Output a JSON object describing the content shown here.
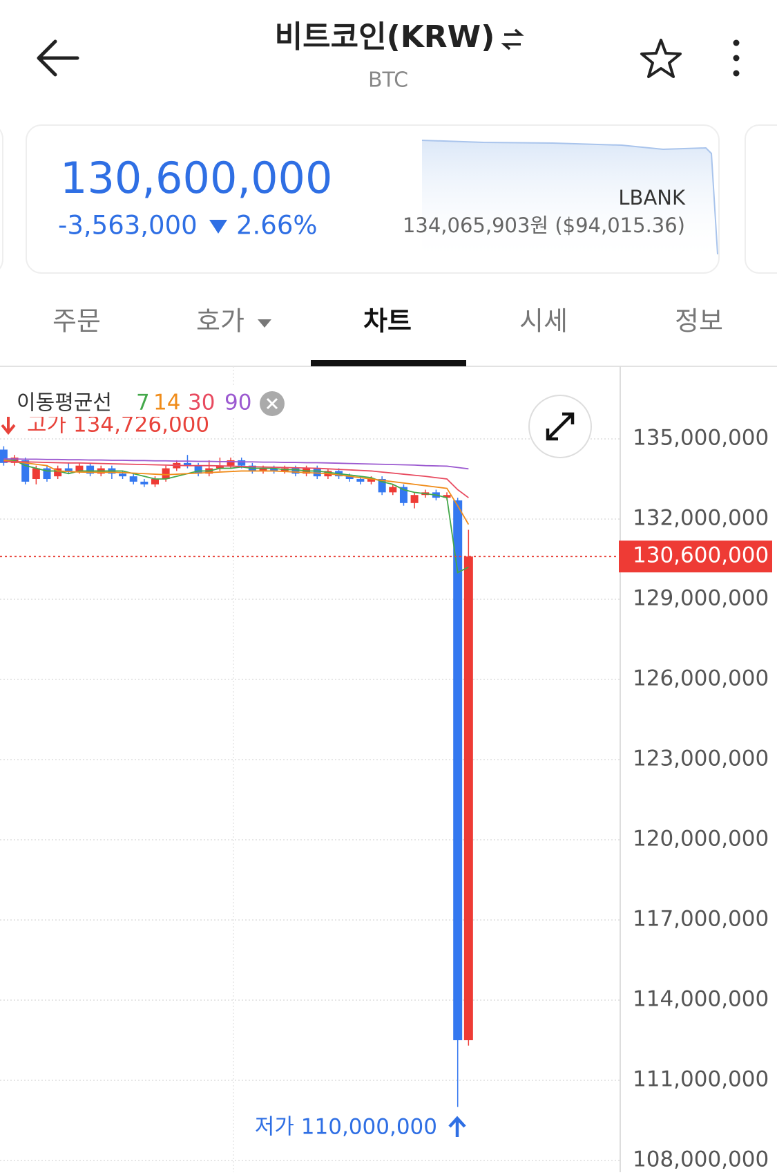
{
  "header": {
    "title": "비트코인(KRW)",
    "subtitle": "BTC"
  },
  "card": {
    "price": "130,600,000",
    "change": "-3,563,000",
    "change_pct": "2.66%",
    "exchange": "LBANK",
    "exchange_price": "134,065,903원 ($94,015.36)"
  },
  "tabs": [
    "주문",
    "호가",
    "차트",
    "시세",
    "정보"
  ],
  "chart_data": {
    "type": "candlestick",
    "ma_label": "이동평균선",
    "up_color": "#ee3b35",
    "down_color": "#3478f0",
    "open": [
      134600000.0,
      134100000.0,
      134200000.0,
      133500000.0,
      133900000.0,
      133600000.0,
      133900000.0,
      133800000.0,
      134000000.0,
      133700000.0,
      133900000.0,
      133700000.0,
      133600000.0,
      133400000.0,
      133300000.0,
      133500000.0,
      133900000.0,
      134100000.0,
      134000000.0,
      133700000.0,
      133900000.0,
      134000000.0,
      134200000.0,
      134000000.0,
      133800000.0,
      133900000.0,
      133800000.0,
      133900000.0,
      133700000.0,
      133900000.0,
      133600000.0,
      133800000.0,
      133600000.0,
      133500000.0,
      133400000.0,
      133500000.0,
      133000000.0,
      133200000.0,
      132600000.0,
      132900000.0,
      133000000.0,
      132800000.0,
      132700000.0,
      112500000.0
    ],
    "high": [
      134726000.0,
      134400000.0,
      134300000.0,
      134000000.0,
      134000000.0,
      134000000.0,
      134100000.0,
      134100000.0,
      134100000.0,
      134000000.0,
      134000000.0,
      133800000.0,
      133700000.0,
      133500000.0,
      133600000.0,
      134000000.0,
      134200000.0,
      134400000.0,
      134100000.0,
      134200000.0,
      134300000.0,
      134300000.0,
      134300000.0,
      134100000.0,
      134000000.0,
      134000000.0,
      134000000.0,
      134000000.0,
      134000000.0,
      134000000.0,
      133900000.0,
      133900000.0,
      133700000.0,
      133600000.0,
      133600000.0,
      133600000.0,
      133300000.0,
      133300000.0,
      133000000.0,
      133100000.0,
      133100000.0,
      133000000.0,
      132800000.0,
      131600000.0
    ],
    "low": [
      134000000.0,
      134000000.0,
      133300000.0,
      133300000.0,
      133400000.0,
      133500000.0,
      133700000.0,
      133700000.0,
      133600000.0,
      133600000.0,
      133500000.0,
      133500000.0,
      133300000.0,
      133200000.0,
      133200000.0,
      133400000.0,
      133800000.0,
      133900000.0,
      133600000.0,
      133600000.0,
      133800000.0,
      133900000.0,
      133900000.0,
      133700000.0,
      133700000.0,
      133700000.0,
      133700000.0,
      133600000.0,
      133600000.0,
      133500000.0,
      133500000.0,
      133500000.0,
      133400000.0,
      133300000.0,
      133300000.0,
      132900000.0,
      132900000.0,
      132500000.0,
      132400000.0,
      132800000.0,
      132700000.0,
      132700000.0,
      110000000.0,
      112300000.0
    ],
    "close": [
      134100000.0,
      134300000.0,
      133400000.0,
      133900000.0,
      133500000.0,
      133900000.0,
      133800000.0,
      134000000.0,
      133700000.0,
      133900000.0,
      133700000.0,
      133600000.0,
      133400000.0,
      133300000.0,
      133500000.0,
      133900000.0,
      134100000.0,
      134000000.0,
      133700000.0,
      133900000.0,
      134000000.0,
      134200000.0,
      134000000.0,
      133800000.0,
      133900000.0,
      133800000.0,
      133900000.0,
      133700000.0,
      133900000.0,
      133600000.0,
      133800000.0,
      133600000.0,
      133500000.0,
      133400000.0,
      133500000.0,
      133000000.0,
      133200000.0,
      132600000.0,
      132900000.0,
      133000000.0,
      132800000.0,
      132900000.0,
      112500000.0,
      130600000.0
    ],
    "series": [
      {
        "name": "7",
        "color": "#43a84a",
        "values": [
          134200000.0,
          134200000.0,
          134000000.0,
          133900000.0,
          133800000.0,
          133800000.0,
          133700000.0,
          133800000.0,
          133800000.0,
          133800000.0,
          133800000.0,
          133800000.0,
          133700000.0,
          133600000.0,
          133500000.0,
          133500000.0,
          133600000.0,
          133700000.0,
          133800000.0,
          133800000.0,
          133900000.0,
          133900000.0,
          133950000.0,
          133900000.0,
          133900000.0,
          133900000.0,
          133850000.0,
          133850000.0,
          133800000.0,
          133800000.0,
          133750000.0,
          133700000.0,
          133650000.0,
          133600000.0,
          133550000.0,
          133400000.0,
          133300000.0,
          133100000.0,
          133000000.0,
          132950000.0,
          132900000.0,
          132800000.0,
          130000000.0,
          130200000.0
        ]
      },
      {
        "name": "14",
        "color": "#f08c1a",
        "values": [
          134200000.0,
          134150000.0,
          134100000.0,
          134050000.0,
          134000000.0,
          133800000.0,
          133780000.0,
          133760000.0,
          133750000.0,
          133750000.0,
          133750000.0,
          133740000.0,
          133720000.0,
          133700000.0,
          133680000.0,
          133660000.0,
          133680000.0,
          133700000.0,
          133720000.0,
          133740000.0,
          133760000.0,
          133780000.0,
          133800000.0,
          133800000.0,
          133800000.0,
          133800000.0,
          133780000.0,
          133760000.0,
          133740000.0,
          133720000.0,
          133700000.0,
          133650000.0,
          133600000.0,
          133550000.0,
          133500000.0,
          133450000.0,
          133400000.0,
          133350000.0,
          133300000.0,
          133250000.0,
          133200000.0,
          133150000.0,
          132500000.0,
          131800000.0
        ]
      },
      {
        "name": "30",
        "color": "#e84a5f",
        "values": [
          134150000.0,
          134150000.0,
          134140000.0,
          134130000.0,
          134120000.0,
          134110000.0,
          134100000.0,
          134100000.0,
          134090000.0,
          134080000.0,
          134070000.0,
          134060000.0,
          134050000.0,
          134040000.0,
          134030000.0,
          134020000.0,
          134010000.0,
          134000000.0,
          134000000.0,
          134000000.0,
          133990000.0,
          133980000.0,
          133970000.0,
          133960000.0,
          133950000.0,
          133940000.0,
          133930000.0,
          133920000.0,
          133910000.0,
          133900000.0,
          133880000.0,
          133860000.0,
          133840000.0,
          133820000.0,
          133800000.0,
          133760000.0,
          133720000.0,
          133680000.0,
          133640000.0,
          133600000.0,
          133550000.0,
          133500000.0,
          133100000.0,
          132800000.0
        ]
      },
      {
        "name": "90",
        "color": "#9b59d0",
        "values": [
          134250000.0,
          134250000.0,
          134240000.0,
          134240000.0,
          134230000.0,
          134230000.0,
          134220000.0,
          134220000.0,
          134210000.0,
          134210000.0,
          134200000.0,
          134200000.0,
          134190000.0,
          134190000.0,
          134180000.0,
          134180000.0,
          134170000.0,
          134170000.0,
          134160000.0,
          134160000.0,
          134150000.0,
          134150000.0,
          134140000.0,
          134140000.0,
          134130000.0,
          134130000.0,
          134120000.0,
          134120000.0,
          134110000.0,
          134110000.0,
          134100000.0,
          134090000.0,
          134080000.0,
          134070000.0,
          134060000.0,
          134050000.0,
          134040000.0,
          134030000.0,
          134020000.0,
          134000000.0,
          133990000.0,
          133980000.0,
          133930000.0,
          133880000.0
        ]
      }
    ],
    "ylim": [
      107560000,
      137716000
    ],
    "yticks": [
      {
        "value": 108000000,
        "label": "108,000,000"
      },
      {
        "value": 111000000,
        "label": "111,000,000"
      },
      {
        "value": 114000000,
        "label": "114,000,000"
      },
      {
        "value": 117000000,
        "label": "117,000,000"
      },
      {
        "value": 120000000,
        "label": "120,000,000"
      },
      {
        "value": 123000000,
        "label": "123,000,000"
      },
      {
        "value": 126000000,
        "label": "126,000,000"
      },
      {
        "value": 129000000,
        "label": "129,000,000"
      },
      {
        "value": 132000000,
        "label": "132,000,000"
      },
      {
        "value": 135000000,
        "label": "135,000,000"
      }
    ],
    "grid": true,
    "current_price": {
      "value": 130600000,
      "label": "130,600,000"
    },
    "high_label": "고가 134,726,000",
    "low_label": "저가 110,000,000"
  }
}
